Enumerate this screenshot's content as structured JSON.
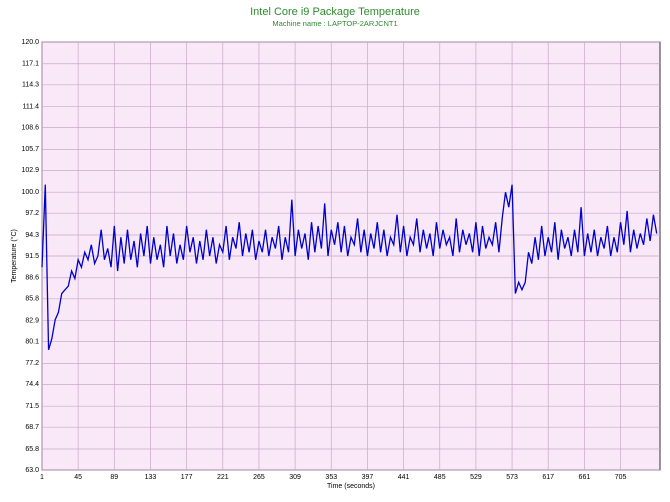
{
  "chart_data": {
    "type": "line",
    "title": "Intel Core i9 Package Temperature",
    "subtitle": "Machine name : LAPTOP-2ARJCNT1",
    "xlabel": "Time (seconds)",
    "ylabel": "Temperature (°C)",
    "xlim": [
      1,
      753
    ],
    "ylim": [
      63,
      120
    ],
    "xticks": [
      1,
      45,
      89,
      133,
      177,
      221,
      265,
      309,
      353,
      397,
      441,
      485,
      529,
      573,
      617,
      661,
      705
    ],
    "yticks": [
      {
        "value": 63,
        "label": "63.0"
      },
      65.8,
      68.7,
      71.5,
      74.4,
      77.2,
      80.1,
      82.9,
      85.8,
      88.6,
      91.5,
      94.3,
      97.2,
      {
        "value": 100,
        "label": "100.0"
      },
      102.9,
      105.7,
      108.6,
      111.4,
      114.3,
      117.1,
      {
        "value": 120,
        "label": "120.0"
      }
    ],
    "grid": true,
    "background": "#f8e8f8",
    "grid_color": "#c8a8c8",
    "series": [
      {
        "name": "Temperature",
        "color": "#0000cc",
        "x": [
          1,
          5,
          9,
          13,
          17,
          21,
          25,
          29,
          33,
          37,
          41,
          45,
          49,
          53,
          57,
          61,
          65,
          69,
          73,
          77,
          81,
          85,
          89,
          93,
          97,
          101,
          105,
          109,
          113,
          117,
          121,
          125,
          129,
          133,
          137,
          141,
          145,
          149,
          153,
          157,
          161,
          165,
          169,
          173,
          177,
          181,
          185,
          189,
          193,
          197,
          201,
          205,
          209,
          213,
          217,
          221,
          225,
          229,
          233,
          237,
          241,
          245,
          249,
          253,
          257,
          261,
          265,
          269,
          273,
          277,
          281,
          285,
          289,
          293,
          297,
          301,
          305,
          309,
          313,
          317,
          321,
          325,
          329,
          333,
          337,
          341,
          345,
          349,
          353,
          357,
          361,
          365,
          369,
          373,
          377,
          381,
          385,
          389,
          393,
          397,
          401,
          405,
          409,
          413,
          417,
          421,
          425,
          429,
          433,
          437,
          441,
          445,
          449,
          453,
          457,
          461,
          465,
          469,
          473,
          477,
          481,
          485,
          489,
          493,
          497,
          501,
          505,
          509,
          513,
          517,
          521,
          525,
          529,
          533,
          537,
          541,
          545,
          549,
          553,
          557,
          561,
          565,
          569,
          573,
          577,
          581,
          585,
          589,
          593,
          597,
          601,
          605,
          609,
          613,
          617,
          621,
          625,
          629,
          633,
          637,
          641,
          645,
          649,
          653,
          657,
          661,
          665,
          669,
          673,
          677,
          681,
          685,
          689,
          693,
          697,
          701,
          705,
          709,
          713,
          717,
          721,
          725,
          729,
          733,
          737,
          741,
          745,
          749
        ],
        "values": [
          90,
          101,
          79,
          80.5,
          83,
          84,
          86.5,
          87,
          87.5,
          89.5,
          88.5,
          91,
          90,
          92,
          91,
          93,
          90.5,
          91.5,
          95,
          91,
          92.5,
          90,
          95.5,
          89.5,
          94,
          90.5,
          95,
          91,
          93.5,
          90,
          94.5,
          91.5,
          95.5,
          90.5,
          94,
          91,
          93,
          90,
          95.5,
          91.5,
          94.5,
          90.5,
          93,
          91,
          95.5,
          92,
          94,
          90.5,
          93.5,
          91,
          95,
          91.5,
          94,
          90.5,
          93,
          92,
          95.5,
          91,
          94,
          92.5,
          96,
          91.5,
          94.5,
          92,
          95,
          91,
          93.5,
          92,
          95,
          91.5,
          94,
          92.5,
          95.5,
          91,
          94,
          92,
          99,
          91.5,
          95,
          92.5,
          94.5,
          91,
          96,
          92,
          95.5,
          92.5,
          98.5,
          91.5,
          95,
          93,
          96,
          92,
          95.5,
          91.5,
          94,
          93,
          96.5,
          92,
          95,
          91.5,
          94.5,
          92.5,
          96,
          92,
          95,
          91.5,
          94,
          93,
          97,
          92,
          95.5,
          91.5,
          94,
          93,
          96.5,
          92,
          95,
          92.5,
          94.5,
          91.5,
          96,
          92.5,
          95,
          93,
          94,
          91.5,
          96.5,
          92,
          95,
          93,
          94.5,
          92,
          96,
          91.5,
          95.5,
          92.5,
          94,
          93,
          96,
          92,
          96.5,
          100,
          98,
          101,
          86.5,
          88,
          87,
          88,
          92,
          90.5,
          94,
          91,
          95.5,
          91.5,
          94,
          92,
          96,
          91,
          95,
          92.5,
          94,
          91.5,
          95,
          92,
          98,
          91.5,
          94.5,
          92,
          95,
          91.5,
          94,
          92.5,
          95.5,
          91.5,
          94,
          92,
          96,
          93,
          97.5,
          92,
          95,
          92.5,
          94.5,
          93,
          96.5,
          93.5,
          97,
          94.5
        ]
      }
    ]
  }
}
